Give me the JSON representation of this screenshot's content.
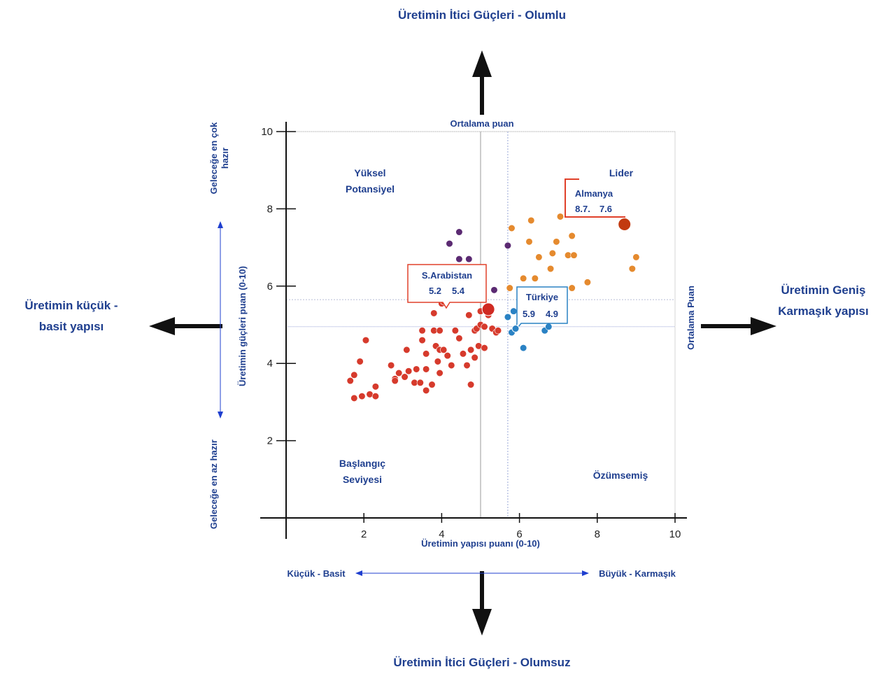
{
  "titles": {
    "top": "Üretimin İtici Güçleri - Olumlu",
    "bottom": "Üretimin İtici Güçleri - Olumsuz",
    "left_line1": "Üretimin küçük  -",
    "left_line2": "basit yapısı",
    "right_line1": "Üretimin Geniş",
    "right_line2": "Karmaşık yapısı"
  },
  "scale_labels": {
    "x_low": "Küçük - Basit",
    "x_high": "Büyük - Karmaşık",
    "y_high_line1": "Geleceğe en çok",
    "y_high_line2": "hazır",
    "y_low": "Geleceğe en az hazır"
  },
  "reference_labels": {
    "vertical": "Ortalama puan",
    "horizontal": "Ortalama Puan"
  },
  "quadrants": {
    "top_left_line1": "Yüksel",
    "top_left_line2": "Potansiyel",
    "top_right": "Lider",
    "bottom_left_line1": "Başlangıç",
    "bottom_left_line2": "Seviyesi",
    "bottom_right": "Özümsemiş"
  },
  "callouts": {
    "germany": {
      "name": "Almanya",
      "x_text": "8.7.",
      "y_text": "7.6"
    },
    "saudi": {
      "name": "S.Arabistan",
      "x_text": "5.2",
      "y_text": "5.4"
    },
    "turkey": {
      "name": "Türkiye",
      "x_text": "5.9",
      "y_text": "4.9"
    }
  },
  "colors": {
    "text": "#1f3f8f",
    "red": "#d63a2c",
    "orange": "#e58a2e",
    "purple": "#5b2a72",
    "blue": "#2a82c4",
    "germany_highlight": "#c23a10",
    "saudi_highlight": "#d02a22",
    "callout_red": "#e0402a",
    "callout_blue": "#2a82c4"
  },
  "chart_data": {
    "type": "scatter",
    "title": "",
    "xlabel": "Üretimin yapısı puanı (0-10)",
    "ylabel": "Üretimin güçleri puan (0-10)",
    "xlim": [
      0,
      10
    ],
    "ylim": [
      0,
      10
    ],
    "xticks": [
      2,
      4,
      6,
      8,
      10
    ],
    "yticks": [
      2,
      4,
      6,
      8,
      10
    ],
    "reference_x": [
      5.0,
      5.7
    ],
    "reference_y": [
      4.95,
      5.65
    ],
    "series": [
      {
        "group": "red",
        "points": [
          [
            1.65,
            3.55
          ],
          [
            1.75,
            3.7
          ],
          [
            1.75,
            3.1
          ],
          [
            1.9,
            4.05
          ],
          [
            1.95,
            3.15
          ],
          [
            2.05,
            4.6
          ],
          [
            2.15,
            3.2
          ],
          [
            2.3,
            3.15
          ],
          [
            2.3,
            3.4
          ],
          [
            2.7,
            3.95
          ],
          [
            2.8,
            3.6
          ],
          [
            2.8,
            3.55
          ],
          [
            2.9,
            3.75
          ],
          [
            3.05,
            3.65
          ],
          [
            3.1,
            4.35
          ],
          [
            3.15,
            3.8
          ],
          [
            3.3,
            3.5
          ],
          [
            3.35,
            3.85
          ],
          [
            3.45,
            3.5
          ],
          [
            3.5,
            4.6
          ],
          [
            3.5,
            4.85
          ],
          [
            3.6,
            4.25
          ],
          [
            3.6,
            3.85
          ],
          [
            3.6,
            3.3
          ],
          [
            3.75,
            3.45
          ],
          [
            3.8,
            4.85
          ],
          [
            3.8,
            5.3
          ],
          [
            3.85,
            4.45
          ],
          [
            3.9,
            4.05
          ],
          [
            3.95,
            4.35
          ],
          [
            3.95,
            3.75
          ],
          [
            3.95,
            4.85
          ],
          [
            4.0,
            5.55
          ],
          [
            4.05,
            4.35
          ],
          [
            4.05,
            5.6
          ],
          [
            4.15,
            4.2
          ],
          [
            4.25,
            3.95
          ],
          [
            4.35,
            4.85
          ],
          [
            4.45,
            4.65
          ],
          [
            4.55,
            4.25
          ],
          [
            4.65,
            3.95
          ],
          [
            4.7,
            5.25
          ],
          [
            4.75,
            3.45
          ],
          [
            4.75,
            4.35
          ],
          [
            4.85,
            4.15
          ],
          [
            4.85,
            4.85
          ],
          [
            4.9,
            4.9
          ],
          [
            4.95,
            4.45
          ],
          [
            5.0,
            5.0
          ],
          [
            5.0,
            5.35
          ],
          [
            5.1,
            4.95
          ],
          [
            5.1,
            4.4
          ],
          [
            5.2,
            5.25
          ],
          [
            5.3,
            4.9
          ],
          [
            5.4,
            4.8
          ],
          [
            5.45,
            4.85
          ]
        ]
      },
      {
        "group": "purple",
        "points": [
          [
            4.2,
            7.1
          ],
          [
            4.45,
            7.4
          ],
          [
            4.45,
            6.7
          ],
          [
            4.7,
            6.7
          ],
          [
            5.35,
            5.9
          ],
          [
            5.7,
            7.05
          ]
        ]
      },
      {
        "group": "orange",
        "points": [
          [
            5.75,
            5.95
          ],
          [
            5.8,
            7.5
          ],
          [
            6.1,
            6.2
          ],
          [
            6.25,
            7.15
          ],
          [
            6.3,
            7.7
          ],
          [
            6.4,
            6.2
          ],
          [
            6.5,
            6.75
          ],
          [
            6.8,
            6.45
          ],
          [
            6.85,
            6.85
          ],
          [
            6.95,
            7.15
          ],
          [
            7.05,
            7.8
          ],
          [
            7.25,
            6.8
          ],
          [
            7.35,
            7.3
          ],
          [
            7.4,
            6.8
          ],
          [
            7.35,
            5.95
          ],
          [
            7.75,
            6.1
          ],
          [
            8.9,
            6.45
          ],
          [
            9.0,
            6.75
          ]
        ]
      },
      {
        "group": "blue",
        "points": [
          [
            5.7,
            5.2
          ],
          [
            5.8,
            4.8
          ],
          [
            5.85,
            5.35
          ],
          [
            6.1,
            4.4
          ],
          [
            6.55,
            5.3
          ],
          [
            6.65,
            4.85
          ],
          [
            6.75,
            4.95
          ],
          [
            7.0,
            5.35
          ]
        ]
      }
    ],
    "highlights": [
      {
        "name": "Almanya",
        "x": 8.7,
        "y": 7.6
      },
      {
        "name": "S.Arabistan",
        "x": 5.2,
        "y": 5.4
      },
      {
        "name": "Türkiye",
        "x": 5.9,
        "y": 4.9
      }
    ]
  }
}
